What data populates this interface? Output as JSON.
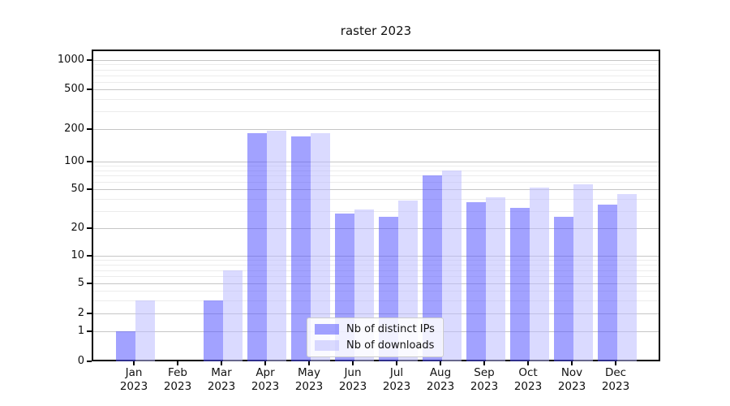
{
  "chart_data": {
    "type": "bar",
    "title": "raster 2023",
    "months": [
      "Jan",
      "Feb",
      "Mar",
      "Apr",
      "May",
      "Jun",
      "Jul",
      "Aug",
      "Sep",
      "Oct",
      "Nov",
      "Dec"
    ],
    "year": "2023",
    "categories": [
      "Jan 2023",
      "Feb 2023",
      "Mar 2023",
      "Apr 2023",
      "May 2023",
      "Jun 2023",
      "Jul 2023",
      "Aug 2023",
      "Sep 2023",
      "Oct 2023",
      "Nov 2023",
      "Dec 2023"
    ],
    "series": [
      {
        "name": "Nb of distinct IPs",
        "color": "#5555ff",
        "alpha": 0.55,
        "values": [
          1,
          0,
          3,
          183,
          172,
          28,
          26,
          70,
          37,
          32,
          26,
          35
        ]
      },
      {
        "name": "Nb of downloads",
        "color": "#bbbbff",
        "alpha": 0.55,
        "values": [
          3,
          0,
          7,
          193,
          183,
          31,
          38,
          80,
          41,
          52,
          57,
          45
        ]
      }
    ],
    "xlabel": "",
    "ylabel": "",
    "yscale": "symlog",
    "y_ticks": [
      0,
      1,
      2,
      5,
      10,
      20,
      50,
      100,
      200,
      500,
      1000
    ],
    "ylim": [
      0,
      1300
    ],
    "grid": true,
    "legend_position": "lower center",
    "colors": {
      "bar_dark": "rgba(85,85,255,0.55)",
      "bar_light": "rgba(187,187,255,0.55)",
      "grid_major": "#c6c6c6",
      "grid_minor": "#ececec",
      "axis": "#000000"
    }
  }
}
